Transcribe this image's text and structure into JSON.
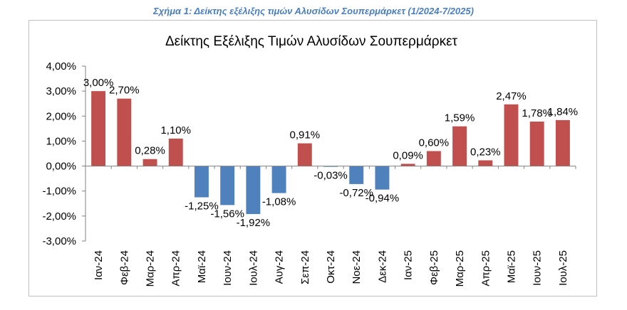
{
  "caption": "Σχήμα 1: Δείκτης εξέλιξης τιμών Αλυσίδων Σουπερμάρκετ (1/2024-7/2025)",
  "chart_data": {
    "type": "bar",
    "title": "Δείκτης Εξέλιξης Τιμών Αλυσίδων Σουπερμάρκετ",
    "xlabel": "",
    "ylabel": "",
    "categories": [
      "Ιαν-24",
      "Φεβ-24",
      "Μαρ-24",
      "Απρ-24",
      "Μαϊ-24",
      "Ιουν-24",
      "Ιουλ-24",
      "Αυγ-24",
      "Σεπ-24",
      "Οκτ-24",
      "Νοε-24",
      "Δεκ-24",
      "Ιαν-25",
      "Φεβ-25",
      "Μαρ-25",
      "Απρ-25",
      "Μαϊ-25",
      "Ιουν-25",
      "Ιουλ-25"
    ],
    "values": [
      3.0,
      2.7,
      0.28,
      1.1,
      -1.25,
      -1.56,
      -1.92,
      -1.08,
      0.91,
      -0.03,
      -0.72,
      -0.94,
      0.09,
      0.6,
      1.59,
      0.23,
      2.47,
      1.78,
      1.84
    ],
    "data_labels": [
      "3,00%",
      "2,70%",
      "0,28%",
      "1,10%",
      "-1,25%",
      "-1,56%",
      "-1,92%",
      "-1,08%",
      "0,91%",
      "-0,03%",
      "-0,72%",
      "-0,94%",
      "0,09%",
      "0,60%",
      "1,59%",
      "0,23%",
      "2,47%",
      "1,78%",
      "1,84%"
    ],
    "ylim": [
      -3,
      4
    ],
    "y_ticks": [
      4,
      3,
      2,
      1,
      0,
      -1,
      -2,
      -3
    ],
    "y_tick_labels": [
      "4,00%",
      "3,00%",
      "2,00%",
      "1,00%",
      "0,00%",
      "-1,00%",
      "-2,00%",
      "-3,00%"
    ],
    "grid": false,
    "legend": "none",
    "colors": {
      "positive": "#c0504d",
      "negative": "#4f81bd",
      "axis": "#808080"
    }
  }
}
